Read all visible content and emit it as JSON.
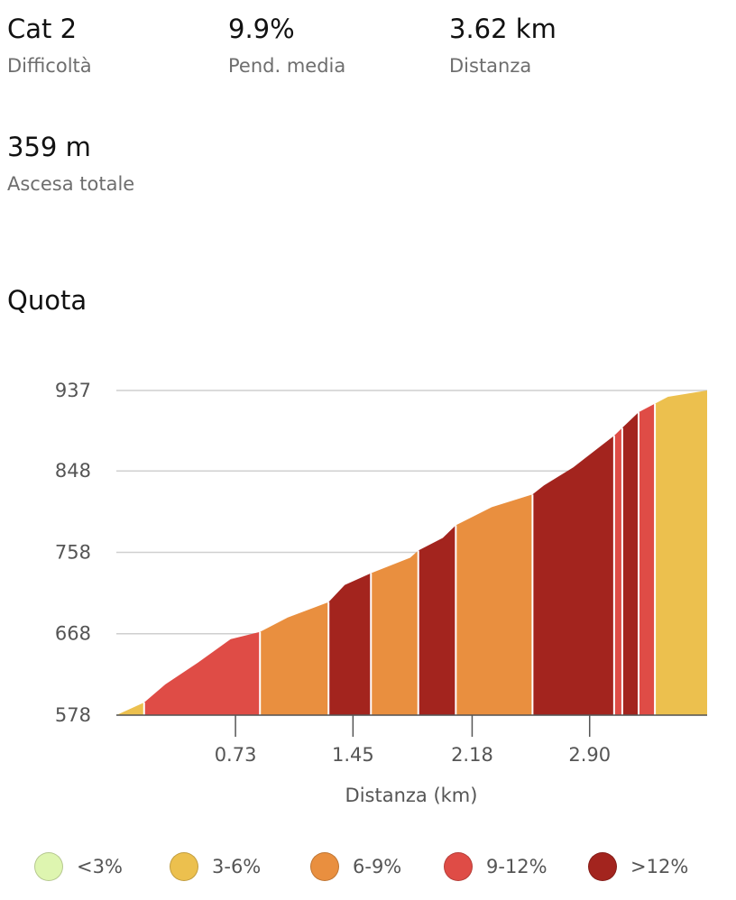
{
  "stats": [
    {
      "value": "Cat 2",
      "label": "Difficoltà"
    },
    {
      "value": "9.9%",
      "label": "Pend. media"
    },
    {
      "value": "3.62 km",
      "label": "Distanza"
    },
    {
      "value": "359 m",
      "label": "Ascesa totale"
    }
  ],
  "section_title": "Quota",
  "legend": [
    {
      "label": "<3%",
      "color": "#def5b0"
    },
    {
      "label": "3-6%",
      "color": "#ecc04e"
    },
    {
      "label": "6-9%",
      "color": "#e98f3f"
    },
    {
      "label": "9-12%",
      "color": "#df4c46"
    },
    {
      "label": ">12%",
      "color": "#a3241e"
    }
  ],
  "chart_data": {
    "type": "area",
    "xlabel": "Distanza (km)",
    "ylabel": "",
    "xlim": [
      0,
      3.62
    ],
    "ylim": [
      578,
      937
    ],
    "x_ticks": [
      {
        "value": 0.73,
        "label": "0.73"
      },
      {
        "value": 1.45,
        "label": "1.45"
      },
      {
        "value": 2.18,
        "label": "2.18"
      },
      {
        "value": 2.9,
        "label": "2.90"
      }
    ],
    "y_ticks": [
      {
        "value": 578,
        "label": "578"
      },
      {
        "value": 668,
        "label": "668"
      },
      {
        "value": 758,
        "label": "758"
      },
      {
        "value": 848,
        "label": "848"
      },
      {
        "value": 937,
        "label": "937"
      }
    ],
    "grid": true,
    "profile": [
      {
        "x": 0.0,
        "y": 578
      },
      {
        "x": 0.17,
        "y": 592
      },
      {
        "x": 0.3,
        "y": 612
      },
      {
        "x": 0.5,
        "y": 636
      },
      {
        "x": 0.7,
        "y": 662
      },
      {
        "x": 0.88,
        "y": 670
      },
      {
        "x": 1.05,
        "y": 686
      },
      {
        "x": 1.3,
        "y": 703
      },
      {
        "x": 1.4,
        "y": 722
      },
      {
        "x": 1.56,
        "y": 735
      },
      {
        "x": 1.8,
        "y": 752
      },
      {
        "x": 1.85,
        "y": 760
      },
      {
        "x": 2.0,
        "y": 774
      },
      {
        "x": 2.08,
        "y": 788
      },
      {
        "x": 2.3,
        "y": 808
      },
      {
        "x": 2.55,
        "y": 822
      },
      {
        "x": 2.62,
        "y": 832
      },
      {
        "x": 2.8,
        "y": 852
      },
      {
        "x": 3.05,
        "y": 887
      },
      {
        "x": 3.2,
        "y": 913
      },
      {
        "x": 3.38,
        "y": 930
      },
      {
        "x": 3.62,
        "y": 937
      }
    ],
    "segments": [
      {
        "from": 0.0,
        "to": 0.17,
        "category": "3-6%"
      },
      {
        "from": 0.17,
        "to": 0.88,
        "category": "9-12%"
      },
      {
        "from": 0.88,
        "to": 1.3,
        "category": "6-9%"
      },
      {
        "from": 1.3,
        "to": 1.56,
        "category": ">12%"
      },
      {
        "from": 1.56,
        "to": 1.85,
        "category": "6-9%"
      },
      {
        "from": 1.85,
        "to": 2.08,
        "category": ">12%"
      },
      {
        "from": 2.08,
        "to": 2.55,
        "category": "6-9%"
      },
      {
        "from": 2.55,
        "to": 3.05,
        "category": ">12%"
      },
      {
        "from": 3.05,
        "to": 3.1,
        "category": "9-12%"
      },
      {
        "from": 3.1,
        "to": 3.2,
        "category": ">12%"
      },
      {
        "from": 3.2,
        "to": 3.3,
        "category": "9-12%"
      },
      {
        "from": 3.3,
        "to": 3.62,
        "category": "3-6%"
      }
    ]
  }
}
